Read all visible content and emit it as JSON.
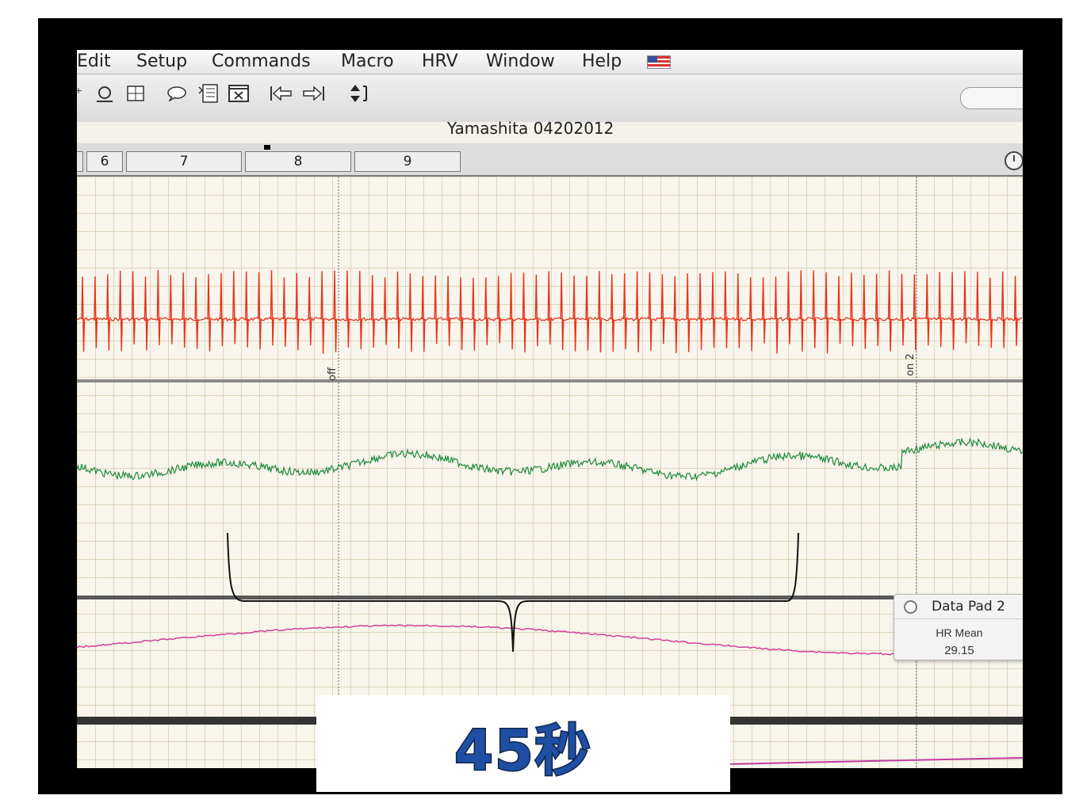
{
  "menubar": {
    "items": [
      "Edit",
      "Setup",
      "Commands",
      "Macro",
      "HRV",
      "Window",
      "Help"
    ]
  },
  "document": {
    "title": "Yamashita 04202012"
  },
  "tabs": [
    "6",
    "7",
    "8",
    "9"
  ],
  "markers": {
    "off": "off",
    "on2": "on 2"
  },
  "data_pad": {
    "title": "Data Pad 2",
    "label": "HR Mean",
    "value": "29.15"
  },
  "caption": {
    "text": "45秒"
  },
  "colors": {
    "ecg": "#e8321c",
    "hr": "#1f8a3c",
    "resp": "#d1409a",
    "caption": "#1e4fa3"
  },
  "icons": [
    "crosshair-icon",
    "zoom-icon",
    "grid-icon",
    "comment-icon",
    "data-table-icon",
    "close-box-icon",
    "previous-icon",
    "next-icon",
    "scale-icon",
    "clock-icon",
    "flag-icon",
    "pad-circle-icon"
  ]
}
